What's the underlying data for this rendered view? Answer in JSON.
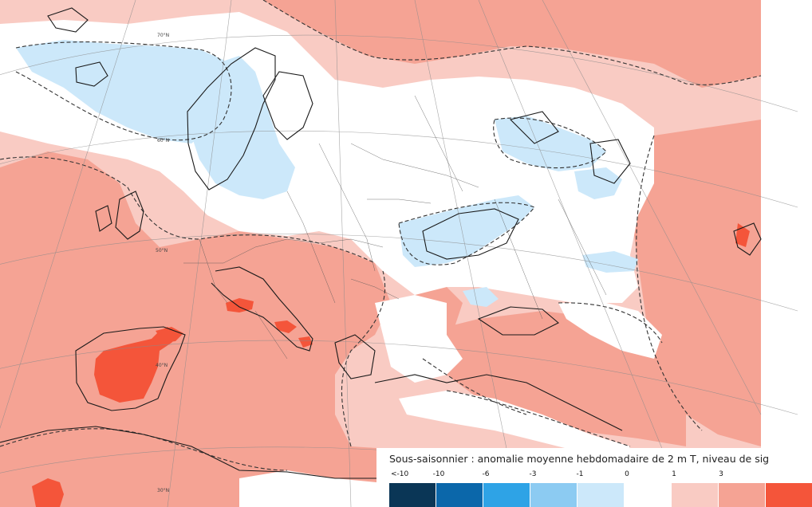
{
  "legend": {
    "title": "Sous-saisonnier : anomalie moyenne hebdomadaire de 2 m T, niveau de sig",
    "ticks": [
      "<-10",
      "-10",
      "-6",
      "-3",
      "-1",
      "0",
      "1",
      "3"
    ],
    "colors": [
      "#0a3656",
      "#0b67aa",
      "#2ea3e6",
      "#8ccbf2",
      "#cce8fa",
      "#ffffff",
      "#f9cbc3",
      "#f5a394",
      "#f4553a"
    ]
  },
  "map": {
    "latitude_labels": [
      "70°N",
      "60°N",
      "50°N",
      "40°N",
      "30°N"
    ],
    "colors": {
      "warm_light": "#f9cbc3",
      "warm": "#f5a394",
      "warm_strong": "#f4553a",
      "neutral": "#ffffff",
      "cool_light": "#cce8fa"
    }
  }
}
